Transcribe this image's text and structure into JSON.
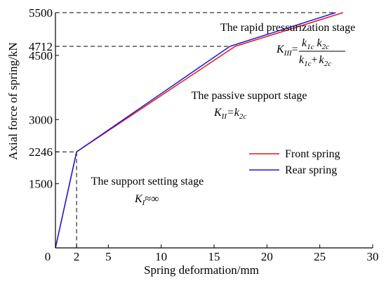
{
  "chart_data": {
    "type": "line",
    "xlabel": "Spring deformation/mm",
    "ylabel": "Axial force of spring/kN",
    "xlim": [
      0,
      30
    ],
    "ylim": [
      0,
      5500
    ],
    "x_ticks": [
      {
        "value": 0,
        "label": "0"
      },
      {
        "value": 2,
        "label": "2"
      },
      {
        "value": 5,
        "label": "5"
      },
      {
        "value": 10,
        "label": "10"
      },
      {
        "value": 15,
        "label": "15"
      },
      {
        "value": 20,
        "label": "20"
      },
      {
        "value": 25,
        "label": "25"
      },
      {
        "value": 30,
        "label": "30"
      }
    ],
    "y_ticks": [
      {
        "value": 1500,
        "label": "1500"
      },
      {
        "value": 2246,
        "label": "2246"
      },
      {
        "value": 3000,
        "label": "3000"
      },
      {
        "value": 4500,
        "label": "4500"
      },
      {
        "value": 4712,
        "label": "4712"
      },
      {
        "value": 5500,
        "label": "5500"
      }
    ],
    "series": [
      {
        "name": "Front spring",
        "color": "#e8141b",
        "x": [
          0,
          2,
          17,
          27.2
        ],
        "y": [
          0,
          2246,
          4712,
          5500
        ]
      },
      {
        "name": "Rear spring",
        "color": "#1a1adf",
        "x": [
          0,
          2,
          16.5,
          26.5
        ],
        "y": [
          0,
          2246,
          4712,
          5500
        ]
      }
    ],
    "guides": [
      {
        "x": 2,
        "y": 2246
      },
      {
        "x": 16.5,
        "y": 4712
      },
      {
        "x": 26.5,
        "y": 5500
      }
    ],
    "annotations": {
      "stage1": {
        "title": "The support setting stage",
        "k": "K",
        "k_sub": "I",
        "rhs": "≈∞"
      },
      "stage2": {
        "title": "The passive support stage",
        "k": "K",
        "k_sub": "II",
        "rhs_main": "=k",
        "rhs_sub": "2c"
      },
      "stage3": {
        "title": "The rapid pressurization stage",
        "k": "K",
        "k_sub": "III",
        "eq": "=",
        "num_a": "k",
        "num_a_sub": "1c",
        "num_b": "k",
        "num_b_sub": "2c",
        "den_a": "k",
        "den_a_sub": "1c",
        "den_plus": "+",
        "den_b": "k",
        "den_b_sub": "2c"
      }
    },
    "legend_position": "center-right",
    "grid": false
  }
}
